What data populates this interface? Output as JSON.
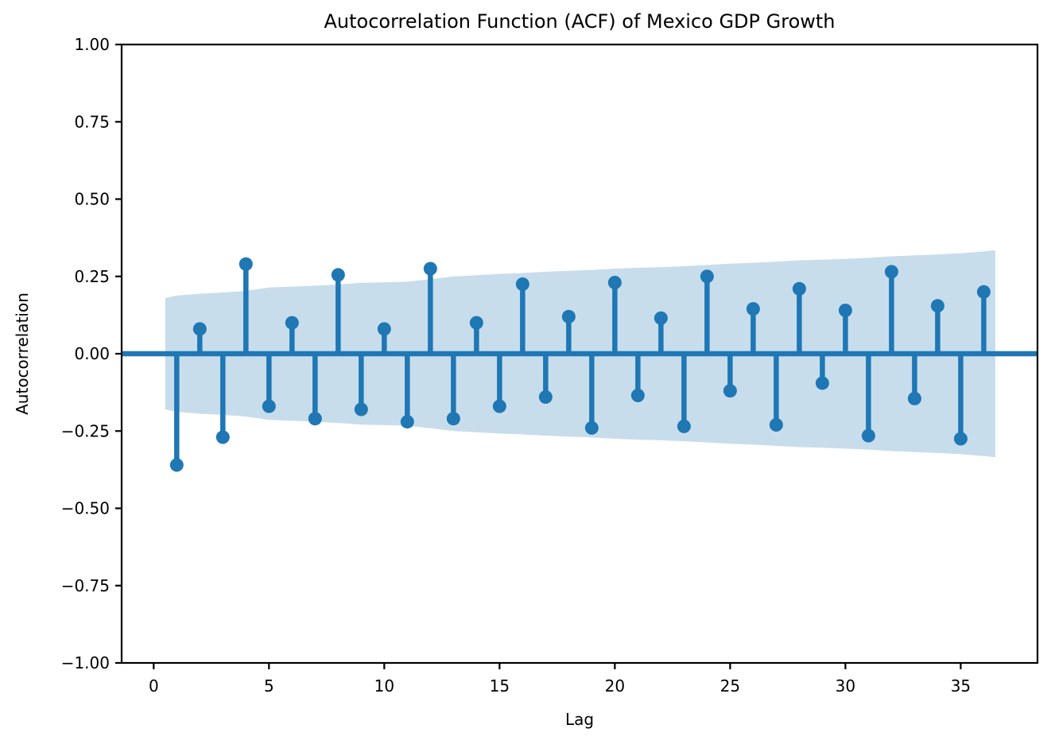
{
  "chart_data": {
    "type": "stem",
    "title": "Autocorrelation Function (ACF) of Mexico GDP Growth",
    "xlabel": "Lag",
    "ylabel": "Autocorrelation",
    "xlim": [
      -1.39,
      38.33
    ],
    "ylim": [
      -1.0,
      1.0
    ],
    "grid": false,
    "xticks": {
      "values": [
        0,
        5,
        10,
        15,
        20,
        25,
        30,
        35
      ],
      "labels": [
        "0",
        "5",
        "10",
        "15",
        "20",
        "25",
        "30",
        "35"
      ]
    },
    "yticks": {
      "values": [
        1.0,
        0.75,
        0.5,
        0.25,
        0.0,
        -0.25,
        -0.5,
        -0.75,
        -1.0
      ],
      "labels": [
        "1.00",
        "0.75",
        "0.50",
        "0.25",
        "0.00",
        "−0.25",
        "−0.50",
        "−0.75",
        "−1.00"
      ]
    },
    "series": [
      {
        "name": "ACF",
        "lags": [
          1,
          2,
          3,
          4,
          5,
          6,
          7,
          8,
          9,
          10,
          11,
          12,
          13,
          14,
          15,
          16,
          17,
          18,
          19,
          20,
          21,
          22,
          23,
          24,
          25,
          26,
          27,
          28,
          29,
          30,
          31,
          32,
          33,
          34,
          35,
          36
        ],
        "values": [
          -0.36,
          0.08,
          -0.27,
          0.29,
          -0.17,
          0.1,
          -0.21,
          0.255,
          -0.18,
          0.08,
          -0.22,
          0.275,
          -0.21,
          0.1,
          -0.17,
          0.225,
          -0.14,
          0.12,
          -0.24,
          0.23,
          -0.135,
          0.115,
          -0.235,
          0.25,
          -0.12,
          0.145,
          -0.23,
          0.21,
          -0.095,
          0.14,
          -0.265,
          0.265,
          -0.145,
          0.155,
          -0.275,
          0.2
        ]
      }
    ],
    "confidence_band": {
      "lags": [
        0.5,
        1,
        2,
        3,
        4,
        5,
        6,
        7,
        8,
        9,
        10,
        11,
        12,
        13,
        14,
        15,
        16,
        17,
        18,
        19,
        20,
        21,
        22,
        23,
        24,
        25,
        26,
        27,
        28,
        29,
        30,
        31,
        32,
        33,
        34,
        35,
        36,
        36.5
      ],
      "half_width": [
        0.18,
        0.188,
        0.194,
        0.198,
        0.203,
        0.214,
        0.217,
        0.22,
        0.224,
        0.229,
        0.231,
        0.233,
        0.241,
        0.25,
        0.254,
        0.258,
        0.261,
        0.265,
        0.268,
        0.271,
        0.275,
        0.278,
        0.28,
        0.283,
        0.287,
        0.291,
        0.294,
        0.298,
        0.302,
        0.304,
        0.307,
        0.31,
        0.315,
        0.318,
        0.321,
        0.325,
        0.331,
        0.335
      ]
    },
    "zero_line": 0.0,
    "colors": {
      "stem": "#1f77b4",
      "marker": "#1f77b4",
      "zero_line": "#1f77b4",
      "band": "rgba(31,119,180,0.25)",
      "axis": "#000000"
    }
  }
}
